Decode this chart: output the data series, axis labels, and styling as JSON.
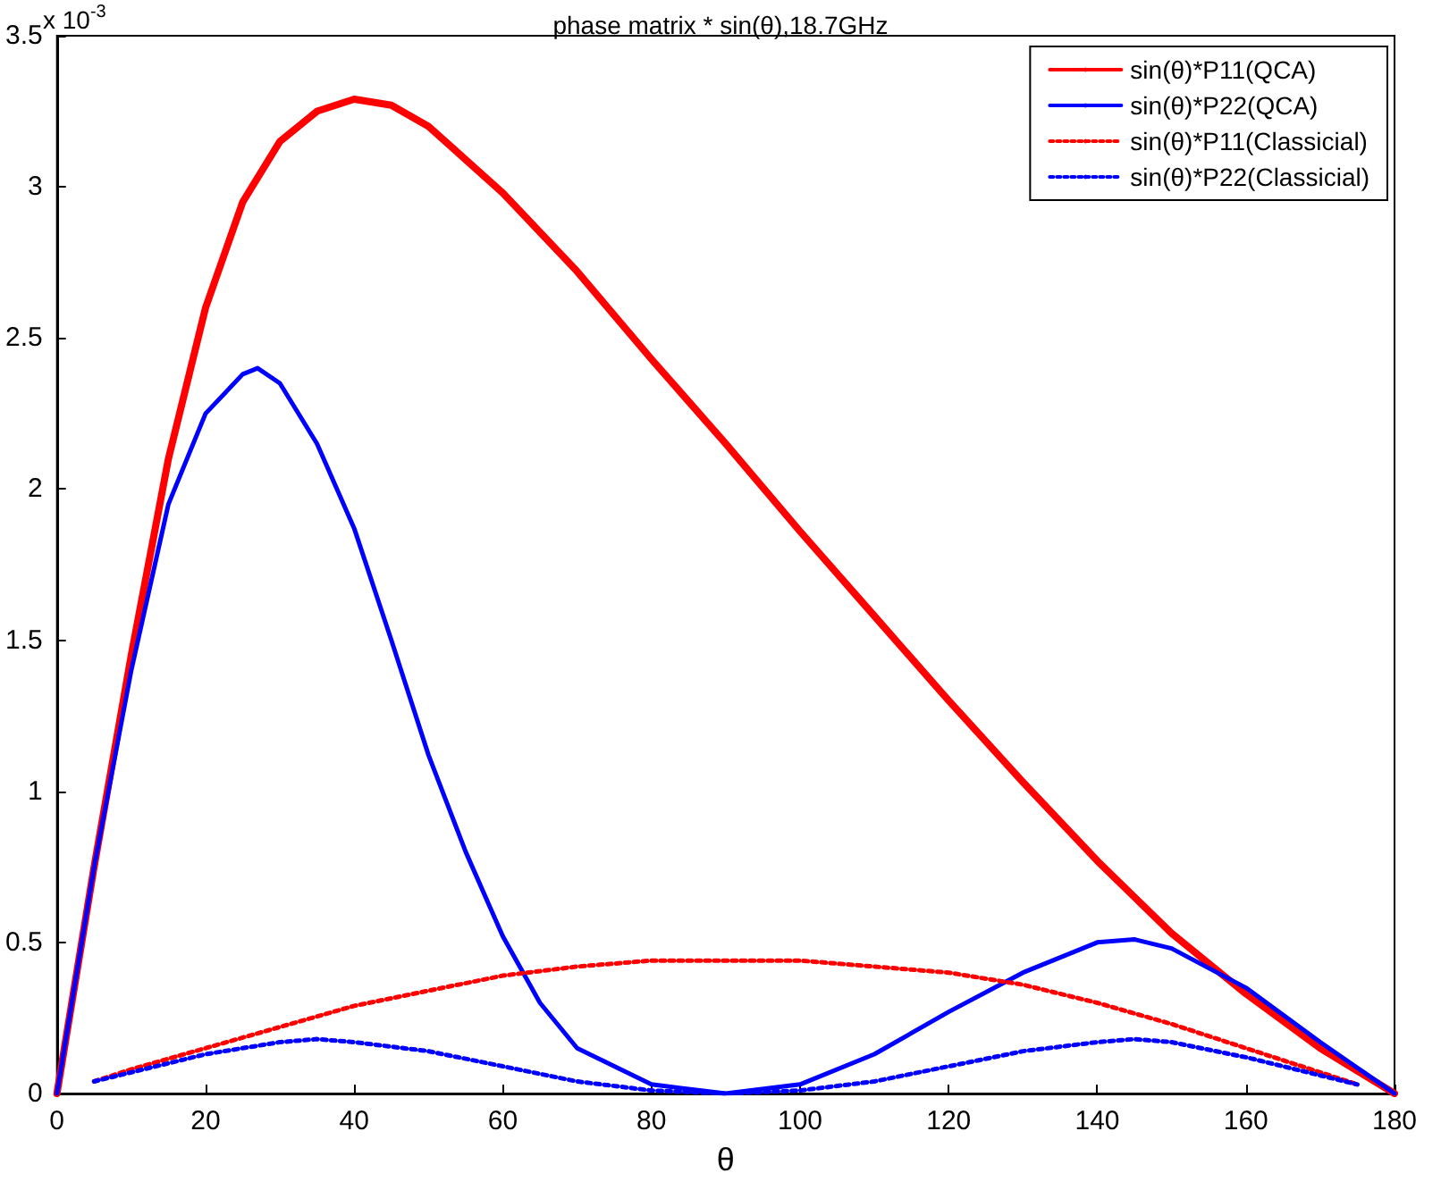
{
  "chart_data": {
    "type": "line",
    "title": "phase matrix * sin(θ),18.7GHz",
    "xlabel": "θ",
    "annotations": [
      "x 10$^{-3}$"
    ],
    "xlim": [
      0,
      180
    ],
    "xticks": [
      0,
      20,
      40,
      60,
      80,
      100,
      120,
      140,
      160,
      180
    ],
    "ylim": [
      0,
      3.5
    ],
    "yticks": [
      0,
      0.5,
      1,
      1.5,
      2,
      2.5,
      3,
      3.5
    ],
    "grid": false,
    "legend": "top right",
    "marker": "none",
    "series": [
      {
        "name": "sin(θ)*P11(QCA)",
        "color": "#ff0000",
        "line_style": "solid",
        "x": [
          0,
          5,
          10,
          15,
          20,
          25,
          30,
          35,
          40,
          45,
          50,
          60,
          70,
          80,
          90,
          100,
          110,
          120,
          130,
          140,
          150,
          160,
          170,
          180
        ],
        "values": [
          0,
          0.75,
          1.45,
          2.1,
          2.6,
          2.95,
          3.15,
          3.25,
          3.29,
          3.27,
          3.2,
          2.98,
          2.72,
          2.43,
          2.15,
          1.86,
          1.58,
          1.3,
          1.03,
          0.77,
          0.53,
          0.33,
          0.15,
          0
        ]
      },
      {
        "name": "sin(θ)*P22(QCA)",
        "color": "#0000ff",
        "line_style": "solid",
        "x": [
          0,
          5,
          10,
          15,
          20,
          25,
          27,
          30,
          35,
          40,
          45,
          50,
          55,
          60,
          65,
          70,
          80,
          90,
          100,
          110,
          120,
          130,
          140,
          145,
          150,
          160,
          170,
          180
        ],
        "values": [
          0,
          0.75,
          1.4,
          1.95,
          2.25,
          2.38,
          2.4,
          2.35,
          2.15,
          1.87,
          1.5,
          1.12,
          0.8,
          0.52,
          0.3,
          0.15,
          0.03,
          0,
          0.03,
          0.13,
          0.27,
          0.4,
          0.5,
          0.51,
          0.48,
          0.35,
          0.17,
          0
        ]
      },
      {
        "name": "sin(θ)*P11(Classicial)",
        "color": "#ff0000",
        "line_style": "dotted",
        "x": [
          5,
          10,
          20,
          30,
          40,
          50,
          60,
          70,
          80,
          90,
          100,
          110,
          120,
          130,
          140,
          150,
          160,
          170,
          175
        ],
        "values": [
          0.04,
          0.08,
          0.15,
          0.22,
          0.29,
          0.34,
          0.39,
          0.42,
          0.44,
          0.44,
          0.44,
          0.42,
          0.4,
          0.36,
          0.3,
          0.23,
          0.15,
          0.07,
          0.03
        ]
      },
      {
        "name": "sin(θ)*P22(Classicial)",
        "color": "#0000ff",
        "line_style": "dotted",
        "x": [
          5,
          10,
          20,
          30,
          35,
          40,
          50,
          60,
          70,
          80,
          90,
          100,
          110,
          120,
          130,
          140,
          145,
          150,
          160,
          170,
          175
        ],
        "values": [
          0.04,
          0.07,
          0.13,
          0.17,
          0.18,
          0.17,
          0.14,
          0.09,
          0.04,
          0.01,
          0,
          0.01,
          0.04,
          0.09,
          0.14,
          0.17,
          0.18,
          0.17,
          0.12,
          0.06,
          0.03
        ]
      }
    ]
  }
}
